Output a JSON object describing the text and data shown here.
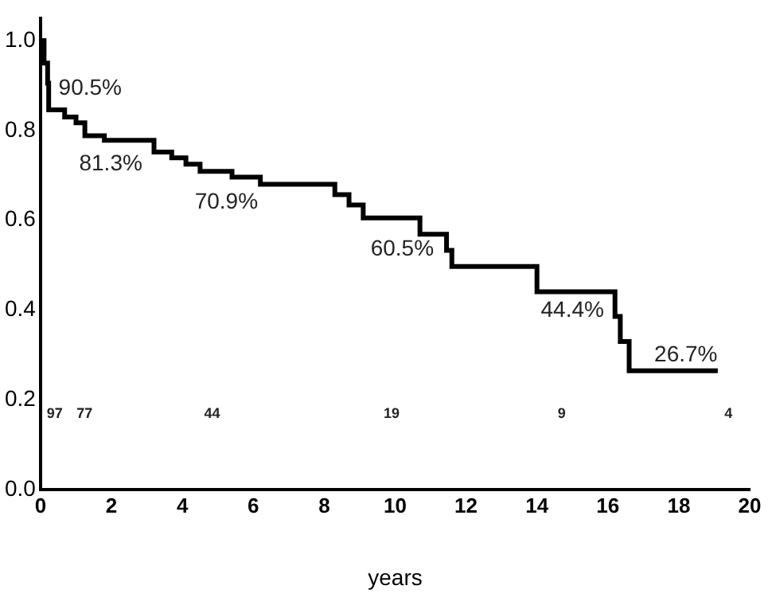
{
  "chart_data": {
    "type": "step",
    "xlabel": "years",
    "x": [
      0,
      0.1,
      0.2,
      0.23,
      0.68,
      1.0,
      1.25,
      1.8,
      3.2,
      3.7,
      4.1,
      4.5,
      5.4,
      6.2,
      8.3,
      8.7,
      9.1,
      10.7,
      11.45,
      11.6,
      14.0,
      16.2,
      16.35,
      16.6,
      19.1
    ],
    "series": [
      {
        "color": "#000000",
        "values": [
          1.0,
          0.95,
          0.905,
          0.846,
          0.83,
          0.817,
          0.788,
          0.778,
          0.752,
          0.739,
          0.725,
          0.709,
          0.696,
          0.68,
          0.657,
          0.634,
          0.605,
          0.569,
          0.533,
          0.497,
          0.441,
          0.386,
          0.33,
          0.265,
          0.265
        ]
      }
    ],
    "xlim": [
      0,
      20
    ],
    "xticks": [
      0,
      2,
      4,
      6,
      8,
      10,
      12,
      14,
      16,
      18,
      20
    ],
    "ylim": [
      0,
      1.05
    ],
    "yticks": [
      {
        "value": 0,
        "label": "0.0"
      },
      {
        "value": 0.2,
        "label": "0.2"
      },
      {
        "value": 0.4,
        "label": "0.4"
      },
      {
        "value": 0.6,
        "label": "0.6"
      },
      {
        "value": 0.8,
        "label": "0.8"
      },
      {
        "value": 1,
        "label": "1.0"
      }
    ],
    "annotations": [
      "90.5%",
      "81.3%",
      "70.9%",
      "60.5%",
      "44.4%",
      "26.7%",
      "97",
      "77",
      "44",
      "19",
      "9",
      "4"
    ],
    "grid": false,
    "legend": false,
    "line_style": "solid",
    "marker": "none"
  }
}
